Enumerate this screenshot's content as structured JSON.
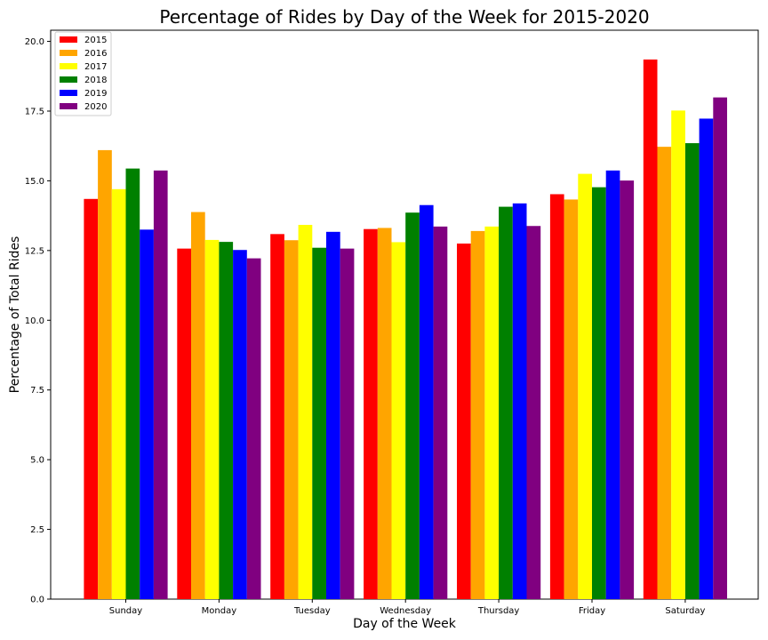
{
  "chart_data": {
    "type": "bar",
    "title": "Percentage of Rides by Day of the Week for 2015-2020",
    "xlabel": "Day of the Week",
    "ylabel": "Percentage of Total Rides",
    "categories": [
      "Sunday",
      "Monday",
      "Tuesday",
      "Wednesday",
      "Thursday",
      "Friday",
      "Saturday"
    ],
    "ylim": [
      0,
      20.4
    ],
    "yticks": [
      "0.0",
      "2.5",
      "5.0",
      "7.5",
      "10.0",
      "12.5",
      "15.0",
      "17.5",
      "20.0"
    ],
    "legend_position": "top-left",
    "grid": false,
    "series": [
      {
        "name": "2015",
        "color": "#ff0000",
        "values": [
          14.35,
          12.57,
          13.09,
          13.27,
          12.75,
          14.52,
          19.35
        ]
      },
      {
        "name": "2016",
        "color": "#ffa500",
        "values": [
          16.1,
          13.88,
          12.87,
          13.31,
          13.2,
          14.33,
          16.22
        ]
      },
      {
        "name": "2017",
        "color": "#ffff00",
        "values": [
          14.7,
          12.88,
          13.42,
          12.8,
          13.36,
          15.25,
          17.52
        ]
      },
      {
        "name": "2018",
        "color": "#008000",
        "values": [
          15.44,
          12.81,
          12.6,
          13.86,
          14.07,
          14.77,
          16.35
        ]
      },
      {
        "name": "2019",
        "color": "#0000ff",
        "values": [
          13.25,
          12.52,
          13.17,
          14.13,
          14.19,
          15.37,
          17.23
        ]
      },
      {
        "name": "2020",
        "color": "#800080",
        "values": [
          15.37,
          12.22,
          12.57,
          13.36,
          13.38,
          15.01,
          17.99
        ]
      }
    ]
  }
}
